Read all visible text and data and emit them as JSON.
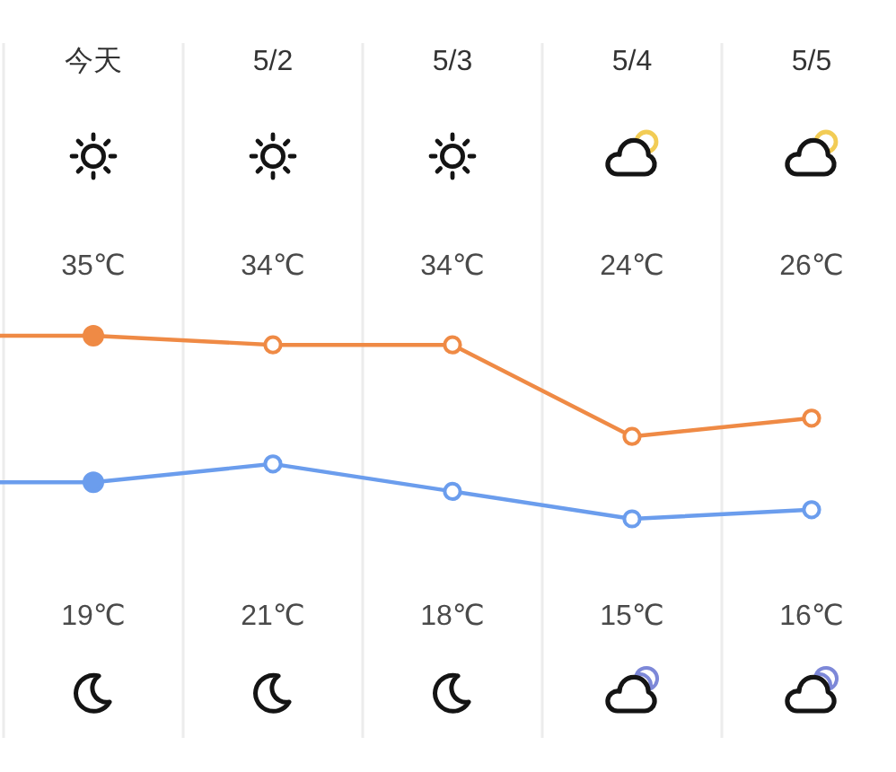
{
  "chart_data": {
    "type": "line",
    "categories": [
      null,
      "今天",
      "5/2",
      "5/3",
      "5/4",
      "5/5"
    ],
    "series": [
      {
        "color": "#ef8a45",
        "values": [
          35,
          35,
          34,
          34,
          24,
          26
        ],
        "value_labels": [
          null,
          "35℃",
          "34℃",
          "34℃",
          "24℃",
          "26℃"
        ]
      },
      {
        "color": "#6b9ded",
        "values": [
          19,
          19,
          21,
          18,
          15,
          16
        ],
        "value_labels": [
          null,
          "19℃",
          "21℃",
          "18℃",
          "15℃",
          "16℃"
        ]
      }
    ],
    "marker": "circle",
    "grid": "x",
    "tick_labels": "x"
  }
}
